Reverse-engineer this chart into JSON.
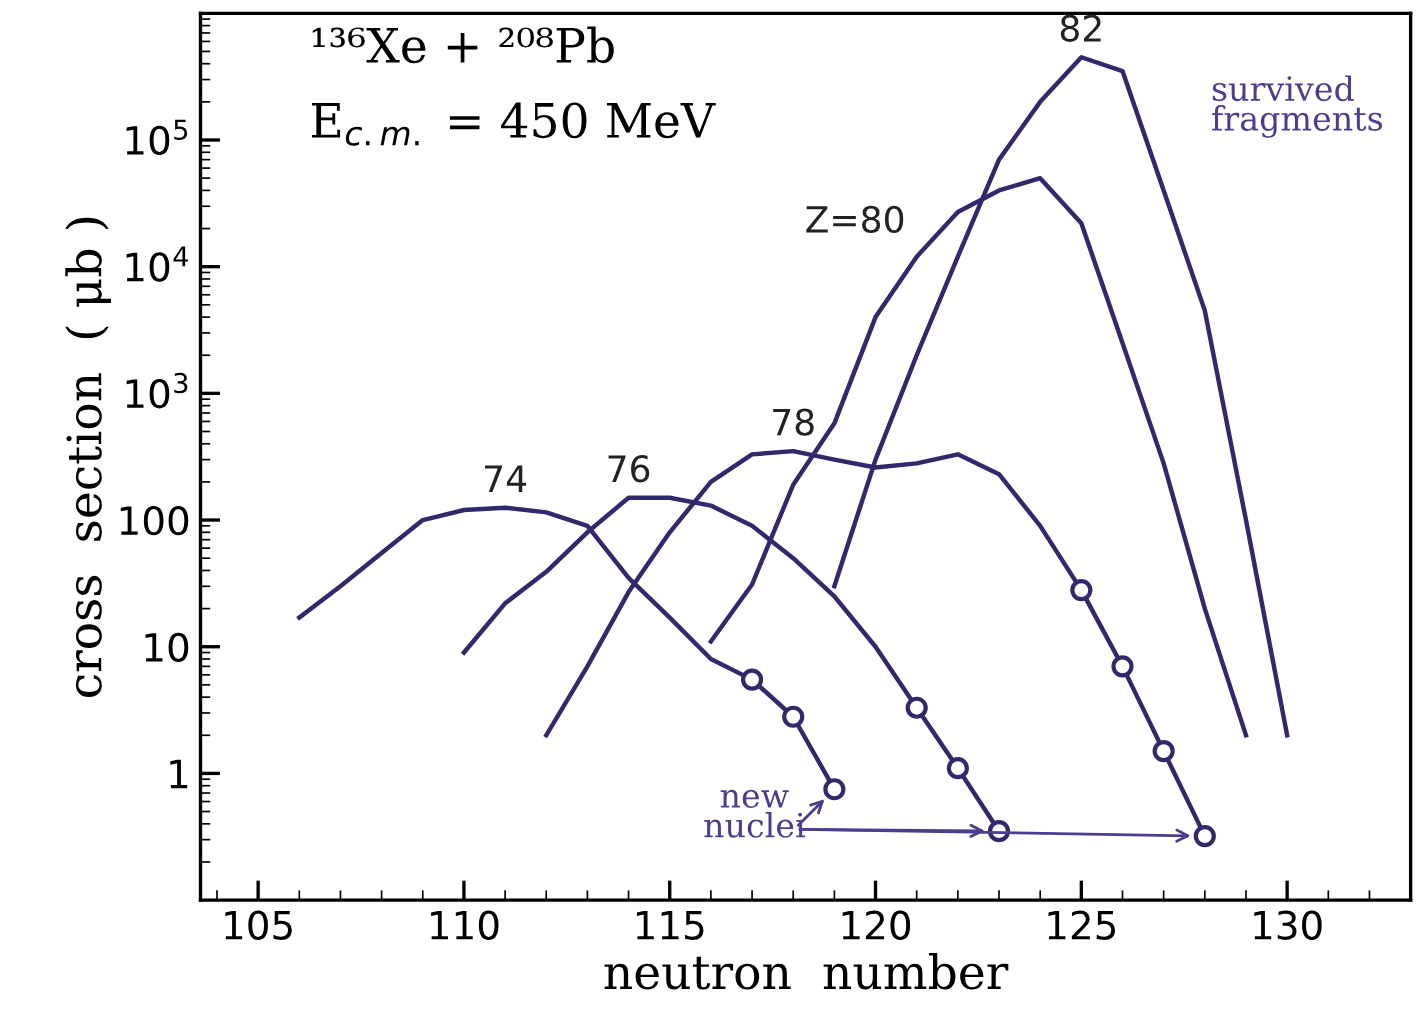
{
  "chart_data": {
    "type": "line",
    "title": "¹³⁶Xe + ²⁰⁸Pb",
    "subtitle": "E$_{c.m.}$ = 450 MeV",
    "xlabel": "neutron  number",
    "ylabel": "cross  section  ( μb )",
    "log": "y",
    "xlim": [
      103.6,
      133
    ],
    "ylim": [
      0.1,
      1000000
    ],
    "xticks": [
      105,
      110,
      115,
      120,
      125,
      130
    ],
    "yticks": [
      1,
      10,
      100,
      {
        "value": 1000,
        "label": "10$^{3}$"
      },
      {
        "value": 10000,
        "label": "10$^{4}$"
      },
      {
        "value": 100000,
        "label": "10$^{5}$"
      }
    ],
    "grid": false,
    "legend": false,
    "line_style": "solid",
    "series": [
      {
        "name": "74",
        "color": "#2e2a6b",
        "x": [
          106,
          107,
          108,
          109,
          110,
          111,
          112,
          113,
          114,
          115,
          116,
          117,
          118,
          119
        ],
        "values": [
          17,
          30,
          55,
          100,
          120,
          125,
          115,
          90,
          35,
          17,
          8,
          5.5,
          2.8,
          0.75
        ]
      },
      {
        "name": "76",
        "color": "#2e2a6b",
        "x": [
          110,
          111,
          112,
          113,
          114,
          115,
          116,
          117,
          118,
          119,
          120,
          121,
          122,
          123
        ],
        "values": [
          9,
          22,
          39,
          80,
          150,
          150,
          130,
          90,
          50,
          25,
          10,
          3.3,
          1.1,
          0.35
        ]
      },
      {
        "name": "78",
        "color": "#2e2a6b",
        "x": [
          112,
          113,
          114,
          115,
          116,
          117,
          118,
          119,
          120,
          121,
          122,
          123,
          124,
          125,
          126,
          127,
          128
        ],
        "values": [
          2,
          7,
          27,
          80,
          200,
          330,
          350,
          300,
          260,
          280,
          330,
          230,
          90,
          28,
          7,
          1.5,
          0.32
        ]
      },
      {
        "name": "Z=80",
        "color": "#2e2a6b",
        "x": [
          116,
          117,
          118,
          119,
          120,
          121,
          122,
          123,
          124,
          125,
          126,
          127,
          128,
          129
        ],
        "values": [
          11,
          31,
          190,
          580,
          4000,
          12000,
          27000,
          40000,
          50000,
          22000,
          2500,
          280,
          20,
          2
        ]
      },
      {
        "name": "82",
        "color": "#2e2a6b",
        "x": [
          119,
          120,
          121,
          122,
          123,
          124,
          125,
          126,
          127,
          128,
          129,
          130
        ],
        "values": [
          30,
          300,
          2000,
          12000,
          70000,
          200000,
          450000,
          350000,
          40000,
          4500,
          100,
          2
        ]
      },
      {
        "type": "scatter",
        "marker": "circle",
        "color": "#2e2a6b",
        "x": [
          117,
          118,
          119,
          121,
          122,
          123,
          125,
          126,
          127,
          128
        ],
        "values": [
          5.5,
          2.8,
          0.75,
          3.3,
          1.1,
          0.35,
          28,
          7,
          1.5,
          0.32
        ]
      }
    ],
    "annotations": [
      "survived\nfragments",
      {
        "text": "new\nnuclei",
        "x": 119,
        "y": 0.75
      }
    ]
  }
}
